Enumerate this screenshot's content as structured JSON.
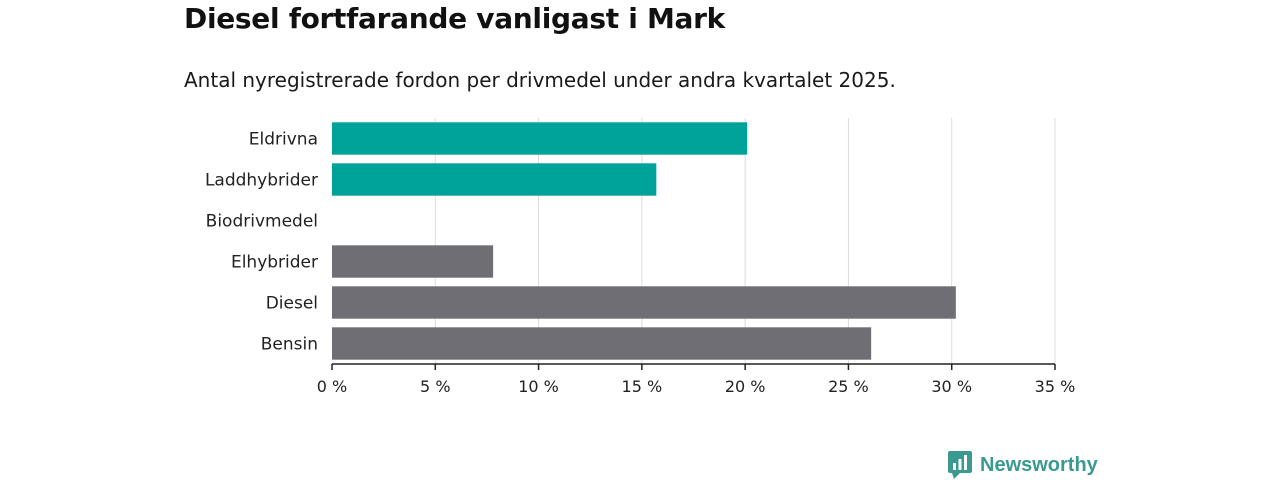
{
  "title": "Diesel fortfarande vanligast i Mark",
  "subtitle": "Antal nyregistrerade fordon per drivmedel under andra kvartalet 2025.",
  "brand": "Newsworthy",
  "colors": {
    "electric": "#00a39a",
    "other": "#6f6e75",
    "grid": "#dcdcdc",
    "axis": "#222222",
    "brand": "#3a9a8f"
  },
  "chart_data": {
    "type": "bar",
    "orientation": "horizontal",
    "categories": [
      "Eldrivna",
      "Laddhybrider",
      "Biodrivmedel",
      "Elhybrider",
      "Diesel",
      "Bensin"
    ],
    "values": [
      20.1,
      15.7,
      0,
      7.8,
      30.2,
      26.1
    ],
    "bar_colors": [
      "#00a39a",
      "#00a39a",
      "#00a39a",
      "#6f6e75",
      "#6f6e75",
      "#6f6e75"
    ],
    "xlim": [
      0,
      35
    ],
    "xticks": [
      0,
      5,
      10,
      15,
      20,
      25,
      30,
      35
    ],
    "tick_suffix": " %",
    "grid": true
  }
}
